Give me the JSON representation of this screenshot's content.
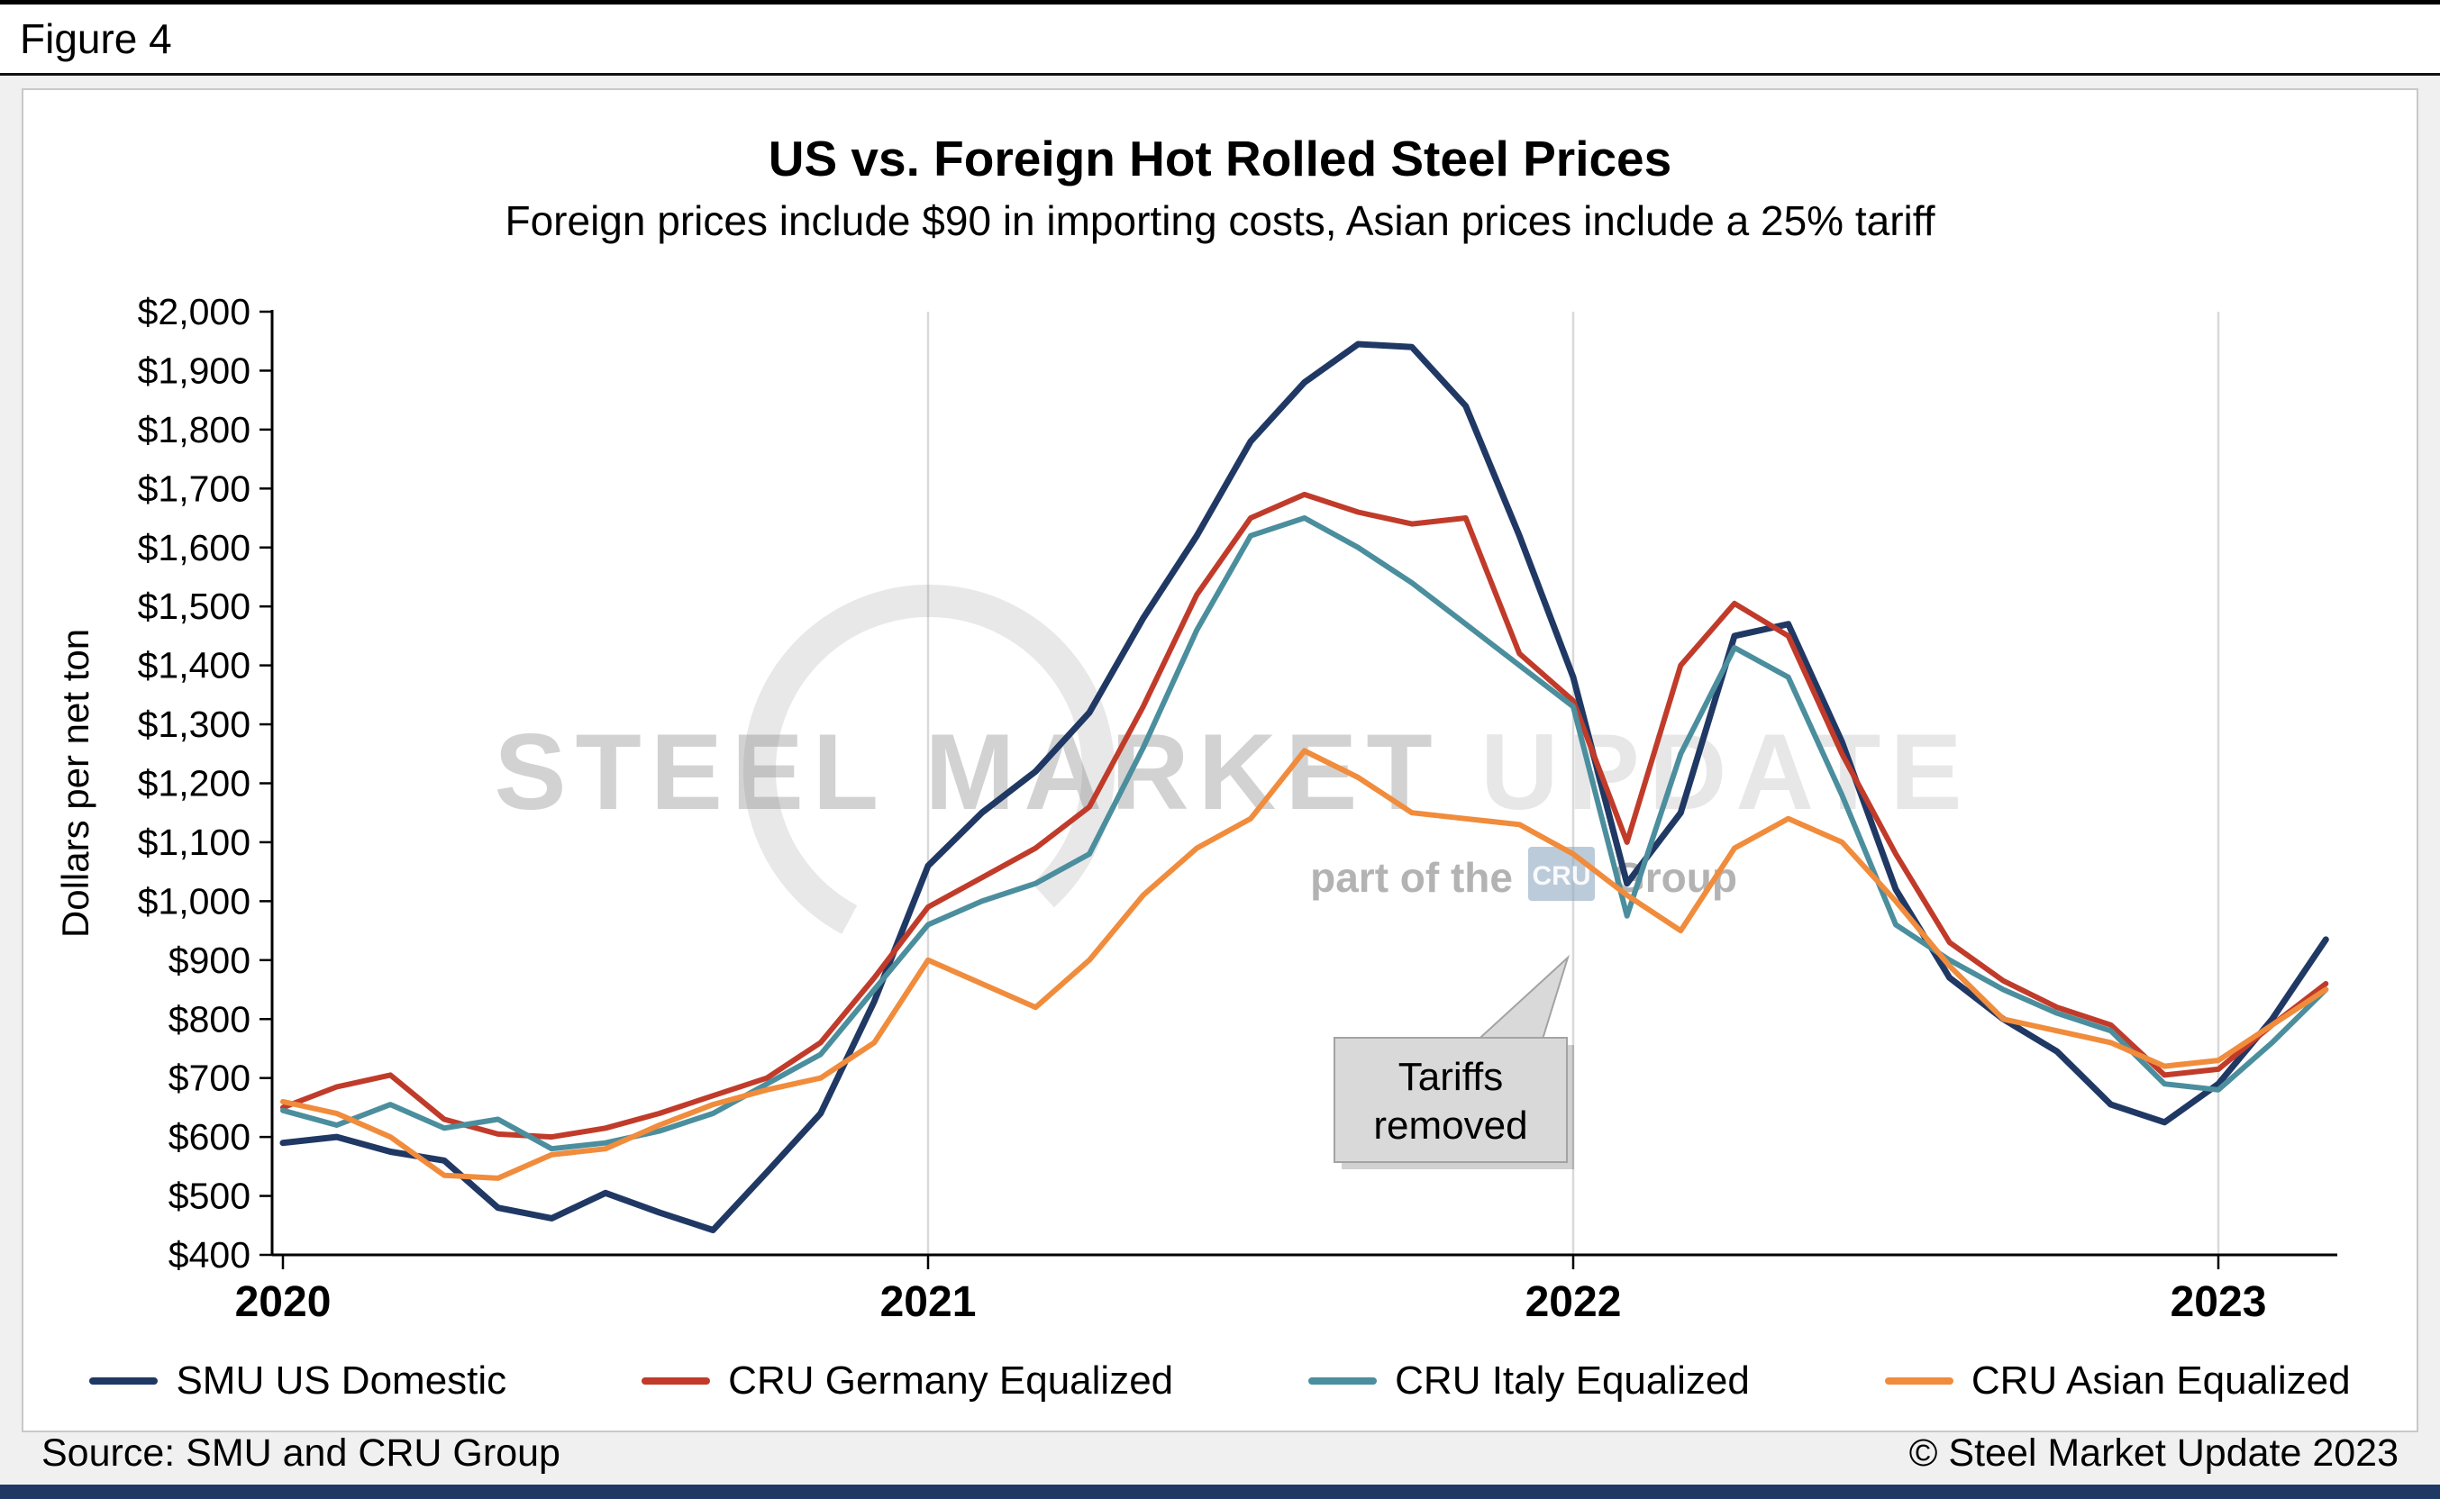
{
  "figure_label": "Figure 4",
  "footer": {
    "source": "Source: SMU and CRU Group",
    "copyright": "© Steel Market Update 2023"
  },
  "watermark": {
    "strong": "STEEL MARKET",
    "light": "UPDATE",
    "tagline_prefix": "part of the",
    "tagline_logo": "CRU",
    "tagline_suffix": "Group"
  },
  "chart_data": {
    "type": "line",
    "title": "US vs. Foreign Hot Rolled Steel Prices",
    "subtitle": "Foreign prices include $90 in importing costs, Asian prices include a 25% tariff",
    "ylabel": "Dollars per net ton",
    "ylim": [
      400,
      2000
    ],
    "ytick_step": 100,
    "y_tick_prefix": "$",
    "xticks": [
      2020,
      2021,
      2022,
      2023
    ],
    "x_start": 2020.0,
    "x_step": 0.0833333,
    "grid": "vertical-years",
    "legend_position": "bottom",
    "months": [
      "2020-01",
      "2020-02",
      "2020-03",
      "2020-04",
      "2020-05",
      "2020-06",
      "2020-07",
      "2020-08",
      "2020-09",
      "2020-10",
      "2020-11",
      "2020-12",
      "2021-01",
      "2021-02",
      "2021-03",
      "2021-04",
      "2021-05",
      "2021-06",
      "2021-07",
      "2021-08",
      "2021-09",
      "2021-10",
      "2021-11",
      "2021-12",
      "2022-01",
      "2022-02",
      "2022-03",
      "2022-04",
      "2022-05",
      "2022-06",
      "2022-07",
      "2022-08",
      "2022-09",
      "2022-10",
      "2022-11",
      "2022-12",
      "2023-01",
      "2023-02",
      "2023-03"
    ],
    "series": [
      {
        "name": "SMU US Domestic",
        "color": "#203864",
        "values": [
          590,
          600,
          575,
          560,
          480,
          462,
          505,
          472,
          442,
          540,
          640,
          830,
          1060,
          1150,
          1220,
          1320,
          1480,
          1620,
          1780,
          1880,
          1945,
          1940,
          1840,
          1620,
          1380,
          1030,
          1150,
          1450,
          1470,
          1270,
          1020,
          870,
          800,
          745,
          655,
          625,
          690,
          800,
          935
        ]
      },
      {
        "name": "CRU Germany Equalized",
        "color": "#c13b2a",
        "values": [
          650,
          685,
          705,
          630,
          605,
          600,
          615,
          640,
          670,
          700,
          760,
          870,
          990,
          1040,
          1090,
          1160,
          1330,
          1520,
          1650,
          1690,
          1660,
          1640,
          1650,
          1420,
          1340,
          1100,
          1400,
          1505,
          1450,
          1250,
          1080,
          930,
          865,
          820,
          790,
          705,
          715,
          790,
          860
        ]
      },
      {
        "name": "CRU Italy Equalized",
        "color": "#4b8e9d",
        "values": [
          645,
          620,
          655,
          615,
          630,
          580,
          590,
          610,
          640,
          690,
          740,
          850,
          960,
          1000,
          1030,
          1080,
          1260,
          1460,
          1620,
          1650,
          1600,
          1540,
          1470,
          1400,
          1330,
          975,
          1250,
          1430,
          1380,
          1180,
          960,
          900,
          850,
          810,
          780,
          690,
          680,
          760,
          850
        ]
      },
      {
        "name": "CRU Asian Equalized",
        "color": "#f08c3c",
        "values": [
          660,
          640,
          600,
          535,
          530,
          570,
          580,
          620,
          655,
          680,
          700,
          760,
          900,
          860,
          820,
          900,
          1010,
          1090,
          1140,
          1255,
          1210,
          1150,
          1140,
          1130,
          1080,
          1010,
          950,
          1090,
          1140,
          1100,
          1000,
          890,
          800,
          780,
          760,
          720,
          730,
          790,
          850
        ]
      }
    ],
    "annotation": {
      "lines": [
        "Tariffs",
        "removed"
      ],
      "pointer_target": {
        "x": 2022.0,
        "y": 950
      }
    }
  }
}
